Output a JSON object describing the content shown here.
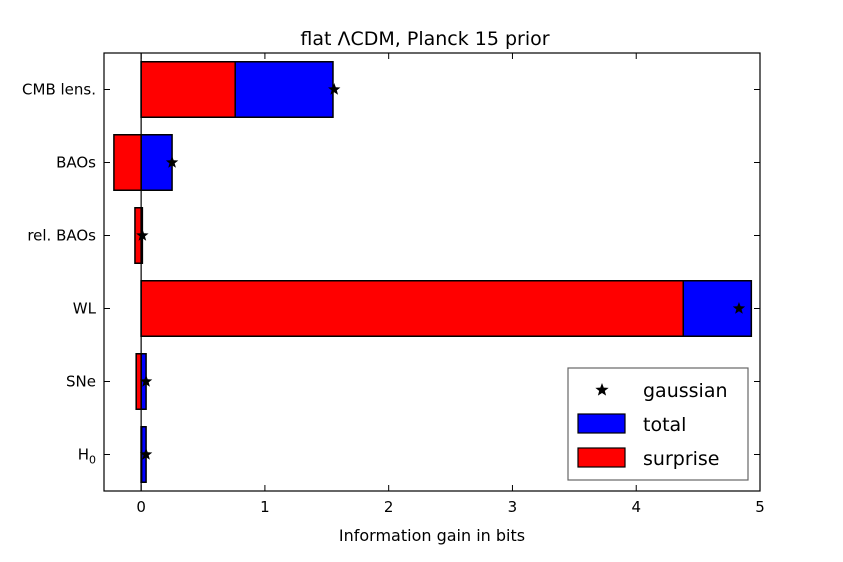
{
  "chart_data": {
    "type": "bar",
    "orientation": "horizontal",
    "title": "flat ΛCDM, Planck 15 prior",
    "xlabel": "Information gain in bits",
    "ylabel": "",
    "xlim": [
      -0.3,
      5.0
    ],
    "xticks": [
      "0",
      "1",
      "2",
      "3",
      "4",
      "5"
    ],
    "categories": [
      "CMB lens.",
      "BAOs",
      "rel. BAOs",
      "WL",
      "SNe",
      "H0"
    ],
    "series": [
      {
        "name": "total",
        "color": "#0000ff",
        "values": [
          1.55,
          0.25,
          0.01,
          4.93,
          0.04,
          0.04
        ]
      },
      {
        "name": "surprise",
        "color": "#ff0000",
        "values": [
          0.76,
          -0.22,
          -0.05,
          4.38,
          -0.04,
          0.0
        ]
      },
      {
        "name": "gaussian",
        "marker": "star",
        "color": "#000000",
        "values": [
          1.56,
          0.25,
          0.01,
          4.83,
          0.04,
          0.04
        ]
      }
    ],
    "legend": {
      "position": "lower-right",
      "entries": [
        {
          "label": "gaussian",
          "kind": "marker",
          "color": "#000000"
        },
        {
          "label": "total",
          "kind": "patch",
          "color": "#0000ff"
        },
        {
          "label": "surprise",
          "kind": "patch",
          "color": "#ff0000"
        }
      ]
    },
    "grid": false
  }
}
